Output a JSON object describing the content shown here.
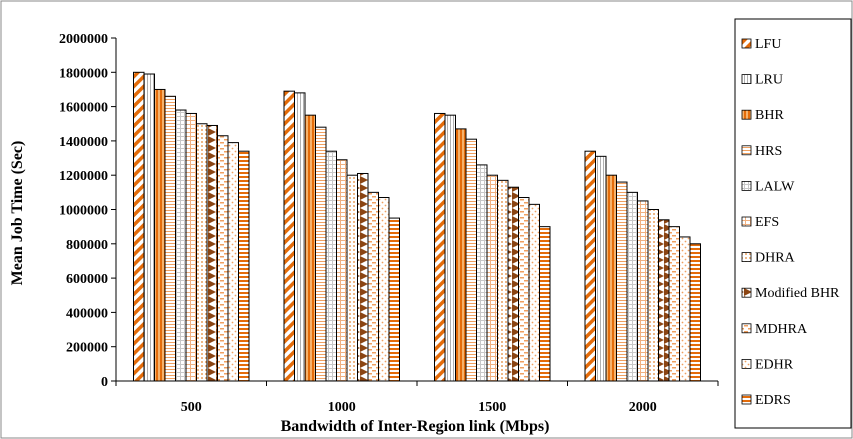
{
  "chart_data": {
    "type": "bar",
    "xlabel": "Bandwidth of Inter-Region link (Mbps)",
    "ylabel": "Mean Job Time (Sec)",
    "ylim": [
      0,
      2000000
    ],
    "yticks": [
      "0",
      "200000",
      "400000",
      "600000",
      "800000",
      "1000000",
      "1200000",
      "1400000",
      "1600000",
      "1800000",
      "2000000"
    ],
    "categories": [
      "500",
      "1000",
      "1500",
      "2000"
    ],
    "legend_position": "right",
    "grid": false,
    "series": [
      {
        "name": "LFU",
        "pattern": "diag-orange",
        "values": [
          1800000,
          1690000,
          1560000,
          1340000
        ]
      },
      {
        "name": "LRU",
        "pattern": "vlines-gray",
        "values": [
          1790000,
          1680000,
          1550000,
          1310000
        ]
      },
      {
        "name": "BHR",
        "pattern": "vstripes-orange",
        "values": [
          1700000,
          1550000,
          1470000,
          1200000
        ]
      },
      {
        "name": "HRS",
        "pattern": "hlines-orange",
        "values": [
          1660000,
          1480000,
          1410000,
          1160000
        ]
      },
      {
        "name": "LALW",
        "pattern": "grid-gray",
        "values": [
          1580000,
          1340000,
          1260000,
          1100000
        ]
      },
      {
        "name": "EFS",
        "pattern": "hgrid-orange",
        "values": [
          1560000,
          1290000,
          1200000,
          1050000
        ]
      },
      {
        "name": "DHRA",
        "pattern": "dots-orange",
        "values": [
          1500000,
          1200000,
          1170000,
          1000000
        ]
      },
      {
        "name": "Modified BHR",
        "pattern": "triangles-brown",
        "values": [
          1490000,
          1210000,
          1130000,
          940000
        ]
      },
      {
        "name": "MDHRA",
        "pattern": "dash-orange",
        "values": [
          1430000,
          1100000,
          1070000,
          900000
        ]
      },
      {
        "name": "EDHR",
        "pattern": "sparse-dots",
        "values": [
          1390000,
          1070000,
          1030000,
          840000
        ]
      },
      {
        "name": "EDRS",
        "pattern": "hstripes-orange",
        "values": [
          1340000,
          950000,
          900000,
          800000
        ]
      }
    ]
  }
}
